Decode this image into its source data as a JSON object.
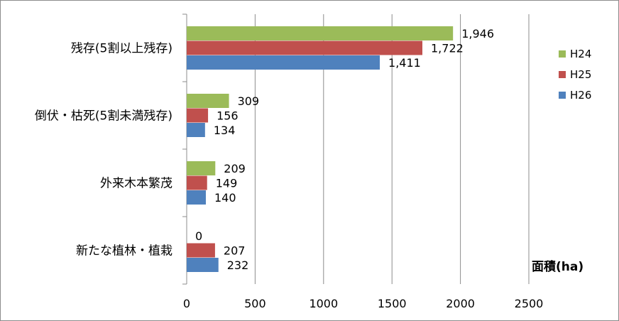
{
  "chart_data": {
    "type": "bar",
    "orientation": "horizontal",
    "categories": [
      "残存(5割以上残存)",
      "倒伏・枯死(5割未満残存)",
      "外来木本繁茂",
      "新たな植林・植栽"
    ],
    "series": [
      {
        "name": "H24",
        "color": "#9bbb59",
        "values": [
          1946,
          309,
          209,
          0
        ],
        "labels": [
          "1,946",
          "309",
          "209",
          "0"
        ]
      },
      {
        "name": "H25",
        "color": "#c0504d",
        "values": [
          1722,
          156,
          149,
          207
        ],
        "labels": [
          "1,722",
          "156",
          "149",
          "207"
        ]
      },
      {
        "name": "H26",
        "color": "#4f81bd",
        "values": [
          1411,
          134,
          140,
          232
        ],
        "labels": [
          "1,411",
          "134",
          "140",
          "232"
        ]
      }
    ],
    "xlim": [
      0,
      2500
    ],
    "xticks": [
      0,
      500,
      1000,
      1500,
      2000,
      2500
    ],
    "xlabel": "面積(ha)",
    "grid": true,
    "legend": "right"
  }
}
